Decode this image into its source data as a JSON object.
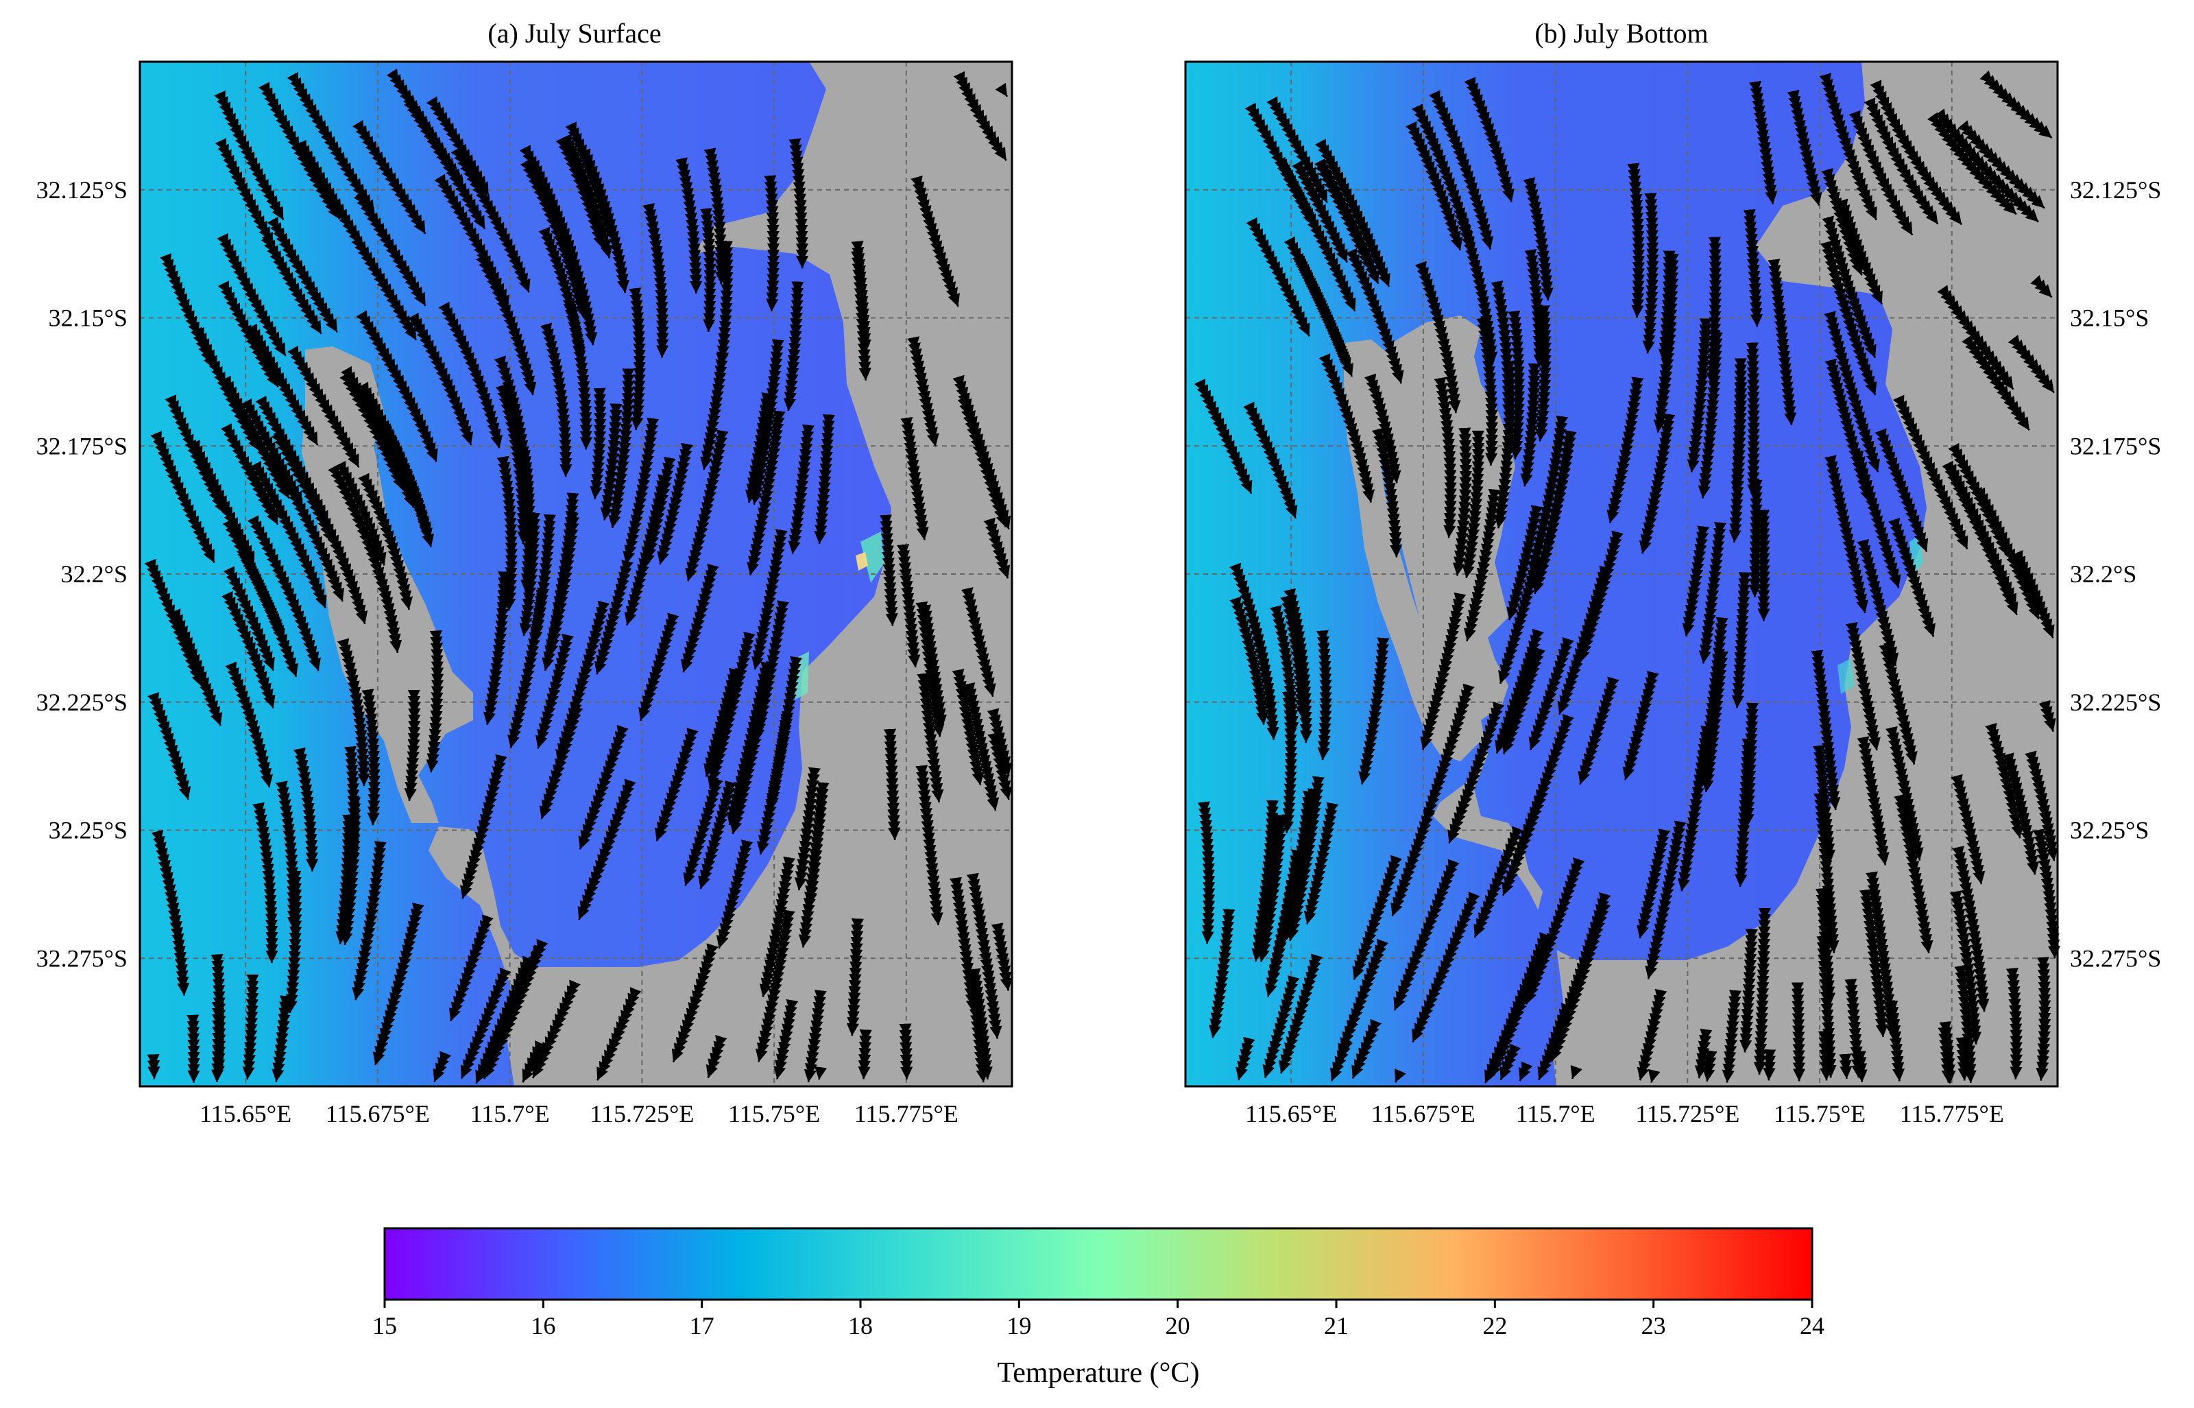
{
  "panels": [
    {
      "id": "surface",
      "title": "(a) July Surface",
      "ytick_side": "left"
    },
    {
      "id": "bottom",
      "title": "(b) July Bottom",
      "ytick_side": "right"
    }
  ],
  "axes": {
    "xlim": [
      115.63,
      115.795
    ],
    "ylim": [
      -32.3,
      -32.1
    ],
    "xticks": [
      115.65,
      115.675,
      115.7,
      115.725,
      115.75,
      115.775
    ],
    "xtick_labels": [
      "115.65°E",
      "115.675°E",
      "115.7°E",
      "115.725°E",
      "115.75°E",
      "115.775°E"
    ],
    "yticks": [
      -32.125,
      -32.15,
      -32.175,
      -32.2,
      -32.225,
      -32.25,
      -32.275
    ],
    "ytick_labels": [
      "32.125°S",
      "32.15°S",
      "32.175°S",
      "32.2°S",
      "32.225°S",
      "32.25°S",
      "32.275°S"
    ],
    "grid": true
  },
  "colorbar": {
    "label": "Temperature (°C)",
    "min": 15,
    "max": 24,
    "ticks": [
      "15",
      "16",
      "17",
      "18",
      "19",
      "20",
      "21",
      "22",
      "23",
      "24"
    ],
    "colormap": "rainbow",
    "stops": [
      "#7f00ff",
      "#4060ff",
      "#00b3e6",
      "#3fe0d0",
      "#80ffb4",
      "#c0e070",
      "#ffb360",
      "#ff6030",
      "#ff0000"
    ]
  },
  "colors": {
    "land": "#a8a8a8",
    "water_surface": "#4a62f5",
    "water_bottom": "#4660f2",
    "west_water": "#17c2e4",
    "streamline": "#000000",
    "grid": "#666666"
  }
}
